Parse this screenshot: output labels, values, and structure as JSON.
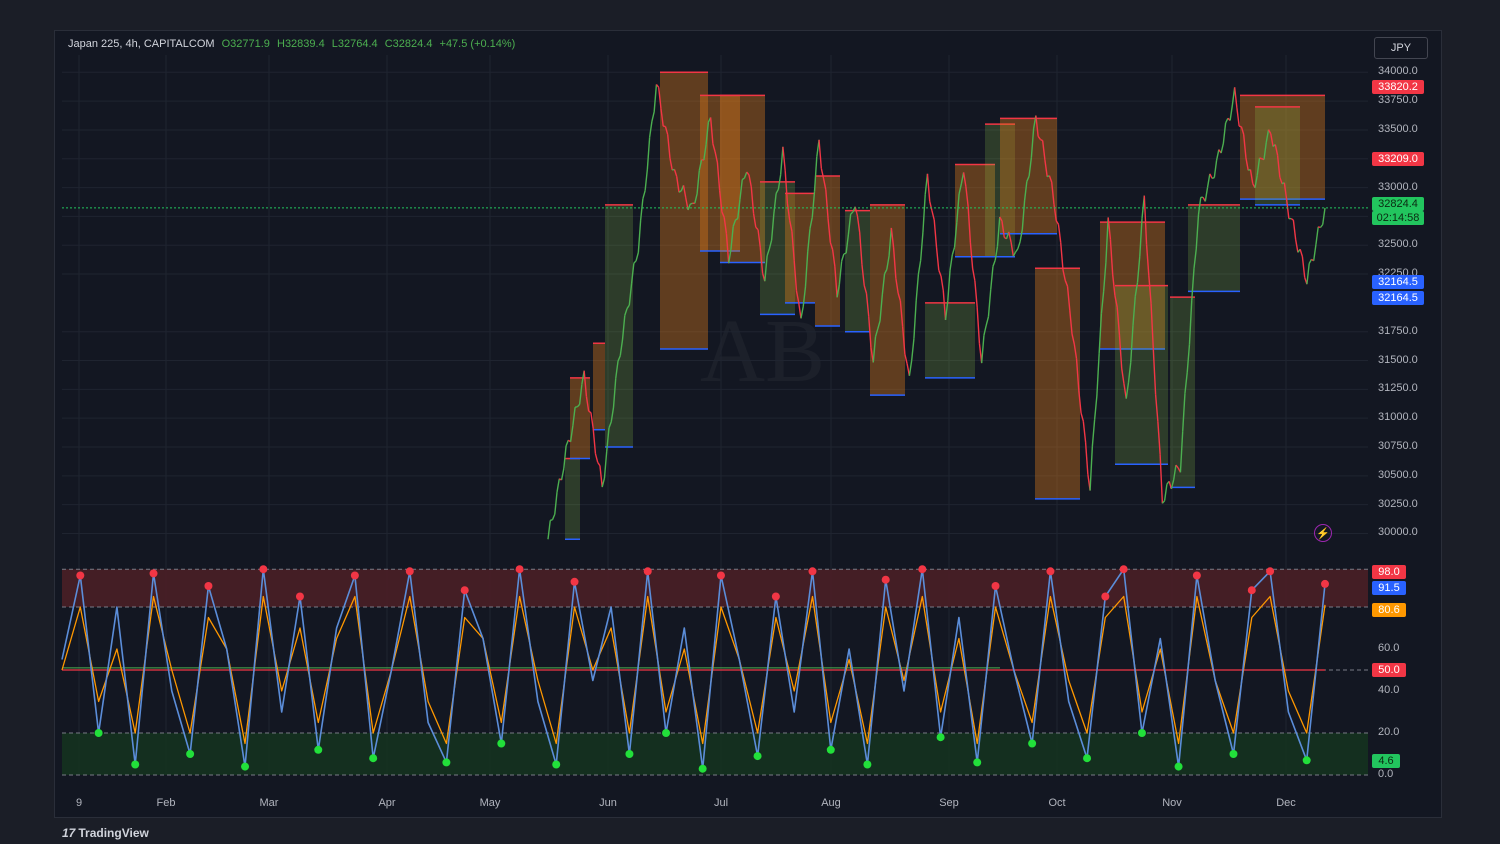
{
  "header": {
    "symbol": "Japan 225, 4h, CAPITALCOM",
    "open": "O32771.9",
    "high": "H32839.4",
    "low": "L32764.4",
    "close": "C32824.4",
    "change": "+47.5 (+0.14%)"
  },
  "currency": "JPY",
  "brand": "TradingView",
  "watermark_text": "AB",
  "price_badges": {
    "high": "33820.2",
    "mid": "33209.0",
    "last": "32824.4",
    "countdown": "02:14:58",
    "low1": "32164.5",
    "low2": "32164.5"
  },
  "osc_badges": {
    "top": "98.0",
    "k": "91.5",
    "d": "80.6",
    "mid": "50.0",
    "bottom": "4.6"
  },
  "colors": {
    "up": "#26a69a",
    "candle_up": "#4caf50",
    "candle_down": "#f23645",
    "zone_orange": "#e07b1a",
    "zone_green": "#8bc34a",
    "support_line": "#2962ff",
    "resistance_line": "#f23645",
    "osc_k": "#5b8dd9",
    "osc_d": "#ff9800",
    "overbought": "#4a1f26",
    "oversold": "#15321f"
  },
  "chart_data": [
    {
      "type": "line",
      "title": "Japan 225, 4h, CAPITALCOM",
      "ylabel": "JPY",
      "ylim": [
        29900,
        34150
      ],
      "y_ticks": [
        "34000.0",
        "33750.0",
        "33500.0",
        "33250.0",
        "33000.0",
        "32750.0",
        "32500.0",
        "32250.0",
        "31750.0",
        "31500.0",
        "31250.0",
        "31000.0",
        "30750.0",
        "30500.0",
        "30250.0",
        "30000.0"
      ],
      "x_ticks": [
        "9",
        "Feb",
        "Mar",
        "Apr",
        "May",
        "Jun",
        "Jul",
        "Aug",
        "Sep",
        "Oct",
        "Nov",
        "Dec"
      ],
      "series": [
        {
          "values": [
            29950,
            30700,
            31350,
            30400,
            31600,
            32500,
            33900,
            33100,
            32800,
            33600,
            32400,
            33200,
            32200,
            33300,
            31800,
            33400,
            32100,
            32900,
            31500,
            32600,
            31300,
            33100,
            31900,
            33200,
            31500,
            32700,
            32400,
            33600,
            32900,
            31800,
            30400,
            32700,
            31100,
            32900,
            30300,
            30600,
            32800,
            33200,
            33800,
            33000,
            33500,
            32800,
            32200,
            32824
          ]
        }
      ],
      "last_value": 32824.4
    },
    {
      "type": "line",
      "ylim": [
        0,
        100
      ],
      "y_ticks": [
        "60.0",
        "40.0",
        "20.0",
        "0.0"
      ],
      "levels": [
        98,
        80,
        50,
        20,
        0
      ],
      "series": [
        {
          "name": "K",
          "values": [
            55,
            95,
            20,
            80,
            5,
            96,
            40,
            10,
            90,
            60,
            4,
            98,
            30,
            85,
            12,
            70,
            95,
            8,
            50,
            97,
            25,
            6,
            88,
            65,
            15,
            98,
            35,
            5,
            92,
            45,
            80,
            10,
            97,
            20,
            70,
            3,
            95,
            55,
            9,
            85,
            30,
            97,
            12,
            60,
            5,
            93,
            40,
            98,
            18,
            75,
            6,
            90,
            50,
            15,
            97,
            35,
            8,
            85,
            98,
            20,
            65,
            4,
            95,
            45,
            10,
            88,
            97,
            30,
            7,
            91
          ]
        },
        {
          "name": "D",
          "values": [
            50,
            80,
            35,
            60,
            20,
            85,
            50,
            20,
            75,
            60,
            15,
            85,
            40,
            70,
            25,
            65,
            85,
            20,
            50,
            85,
            35,
            15,
            75,
            65,
            25,
            85,
            45,
            15,
            80,
            50,
            70,
            20,
            85,
            30,
            60,
            15,
            80,
            55,
            20,
            75,
            40,
            85,
            25,
            55,
            15,
            80,
            45,
            85,
            30,
            65,
            15,
            80,
            50,
            25,
            85,
            45,
            20,
            75,
            85,
            30,
            60,
            15,
            85,
            45,
            20,
            75,
            85,
            40,
            20,
            81
          ]
        }
      ]
    }
  ]
}
